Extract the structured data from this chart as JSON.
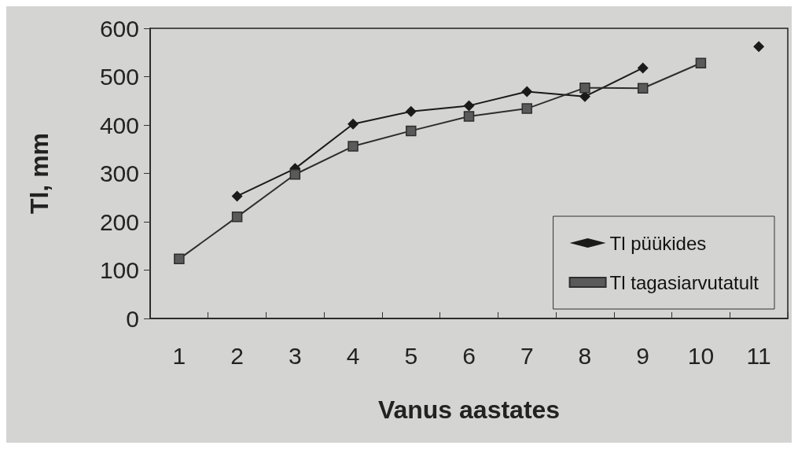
{
  "chart_data": {
    "type": "line",
    "xlabel": "Vanus aastates",
    "ylabel": "Tl, mm",
    "categories": [
      "1",
      "2",
      "3",
      "4",
      "5",
      "6",
      "7",
      "8",
      "9",
      "10",
      "11"
    ],
    "series": [
      {
        "name": "Tl püükides",
        "color": "#1a1a1a",
        "marker": "diamond",
        "values": [
          null,
          253,
          310,
          402,
          428,
          440,
          469,
          459,
          518,
          null,
          562
        ]
      },
      {
        "name": "Tl tagasiarvutatult",
        "color": "#2e2e2e",
        "marker": "square",
        "values": [
          123,
          210,
          298,
          356,
          388,
          418,
          434,
          477,
          476,
          528,
          null
        ]
      }
    ],
    "ylim": [
      0,
      600
    ],
    "yticks": [
      0,
      100,
      200,
      300,
      400,
      500,
      600
    ],
    "grid": false,
    "legend": "bottom right",
    "line_style": "solid"
  }
}
